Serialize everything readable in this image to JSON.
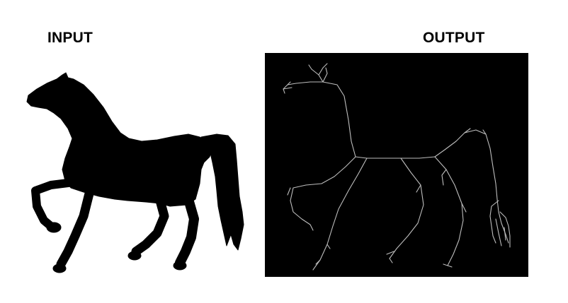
{
  "labels": {
    "input": "INPUT",
    "output": "OUTPUT"
  },
  "colors": {
    "background": "#ffffff",
    "silhouette": "#000000",
    "output_panel": "#000000",
    "skeleton_line": "#bdbdbd"
  },
  "icons": {
    "input_image": "horse-silhouette-icon",
    "output_image": "horse-skeleton-icon"
  }
}
